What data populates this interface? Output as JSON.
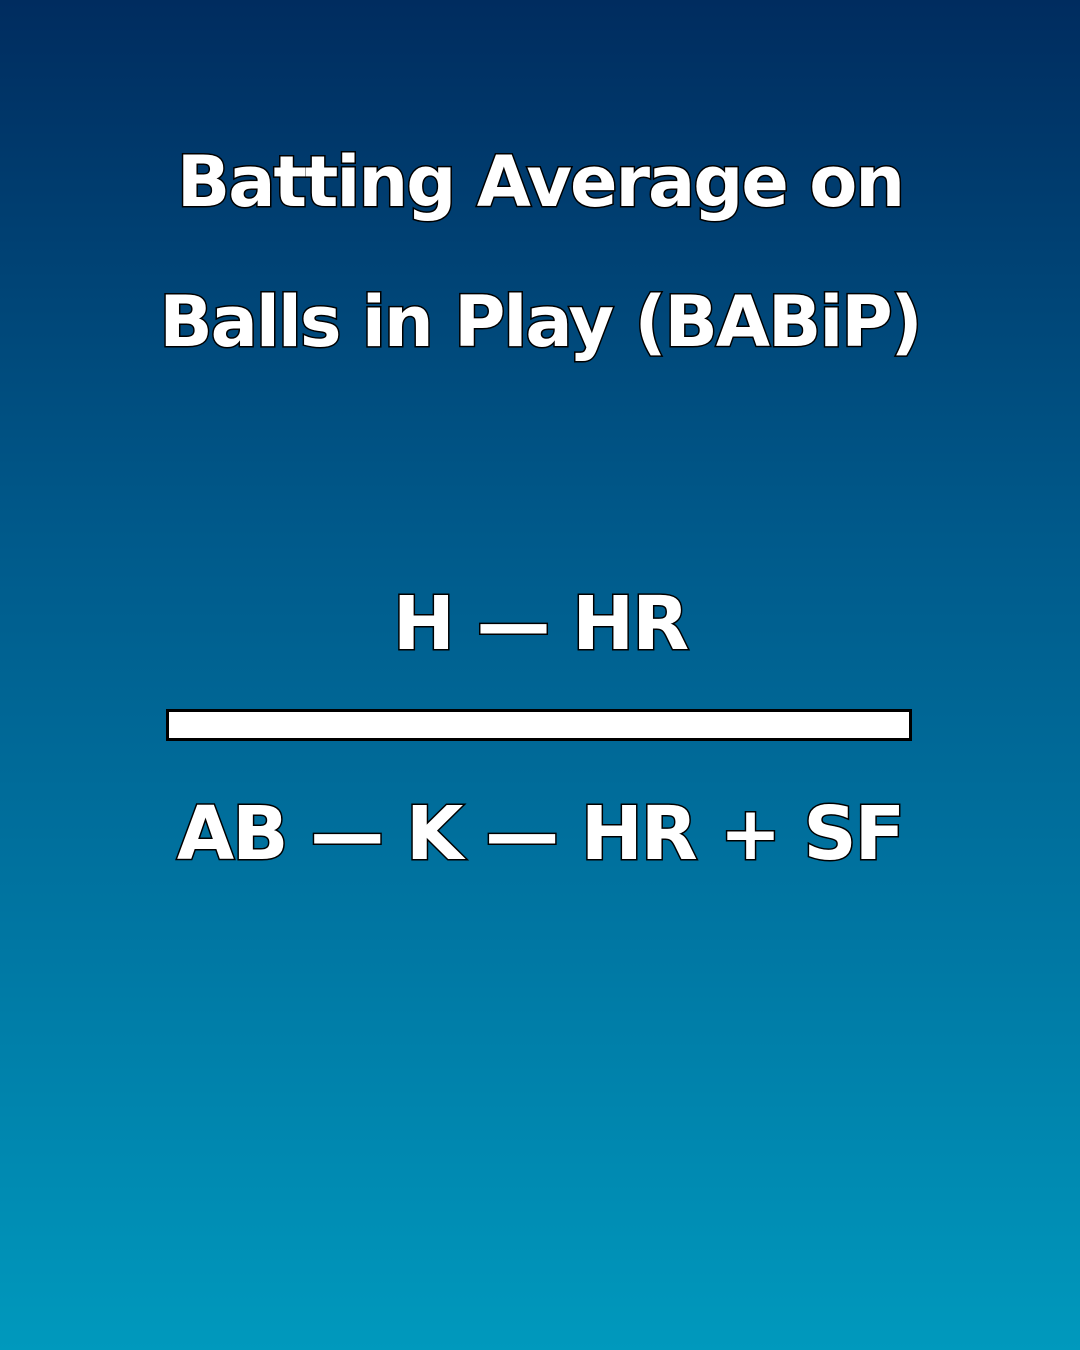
{
  "title": {
    "line1": "Batting Average on",
    "line2": "Balls in Play (BABiP)"
  },
  "formula": {
    "numerator": "H — HR",
    "denominator": "AB — K — HR + SF"
  },
  "colors": {
    "background_top": "#002c5f",
    "background_bottom": "#0099bd",
    "text": "#ffffff",
    "outline": "#000000"
  }
}
